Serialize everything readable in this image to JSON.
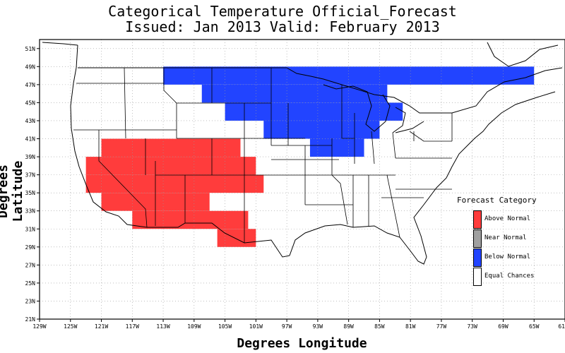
{
  "title_line1": "Categorical Temperature Official_Forecast",
  "title_line2": "Issued: Jan 2013 Valid: February 2013",
  "legend": {
    "title": "Forecast Category",
    "items": [
      {
        "label": "Above Normal",
        "color": "#ff3c3c"
      },
      {
        "label": "Near Normal",
        "color": "#a0a0a0"
      },
      {
        "label": "Below Normal",
        "color": "#2244ff"
      },
      {
        "label": "Equal Chances",
        "color": "#ffffff"
      }
    ]
  },
  "chart_data": {
    "type": "heatmap",
    "xlabel": "Degrees Longitude",
    "ylabel": "Degrees Latitude",
    "xlim": [
      -129,
      -61
    ],
    "ylim": [
      21,
      52
    ],
    "x_ticks": [
      "129W",
      "125W",
      "121W",
      "117W",
      "113W",
      "109W",
      "105W",
      "101W",
      "97W",
      "93W",
      "89W",
      "85W",
      "81W",
      "77W",
      "73W",
      "69W",
      "65W",
      "61"
    ],
    "y_ticks": [
      "21N",
      "23N",
      "25N",
      "27N",
      "29N",
      "31N",
      "33N",
      "35N",
      "37N",
      "39N",
      "41N",
      "43N",
      "45N",
      "47N",
      "49N",
      "51N"
    ],
    "grid": true,
    "regions": [
      {
        "category": "Below Normal",
        "cells": [
          {
            "lon": [
              -113,
              -65
            ],
            "lat": [
              47,
              49
            ]
          },
          {
            "lon": [
              -108,
              -84
            ],
            "lat": [
              45,
              47
            ]
          },
          {
            "lon": [
              -105,
              -82
            ],
            "lat": [
              43,
              45
            ]
          },
          {
            "lon": [
              -100,
              -85
            ],
            "lat": [
              41,
              43
            ]
          },
          {
            "lon": [
              -94,
              -87
            ],
            "lat": [
              39,
              41
            ]
          }
        ]
      },
      {
        "category": "Above Normal",
        "cells": [
          {
            "lon": [
              -121,
              -103
            ],
            "lat": [
              39,
              41
            ]
          },
          {
            "lon": [
              -123,
              -101
            ],
            "lat": [
              37,
              39
            ]
          },
          {
            "lon": [
              -123,
              -100
            ],
            "lat": [
              35,
              37
            ]
          },
          {
            "lon": [
              -121,
              -107
            ],
            "lat": [
              33,
              35
            ]
          },
          {
            "lon": [
              -117,
              -102
            ],
            "lat": [
              31,
              33
            ]
          },
          {
            "lon": [
              -106,
              -101
            ],
            "lat": [
              29,
              31
            ]
          }
        ]
      }
    ]
  }
}
